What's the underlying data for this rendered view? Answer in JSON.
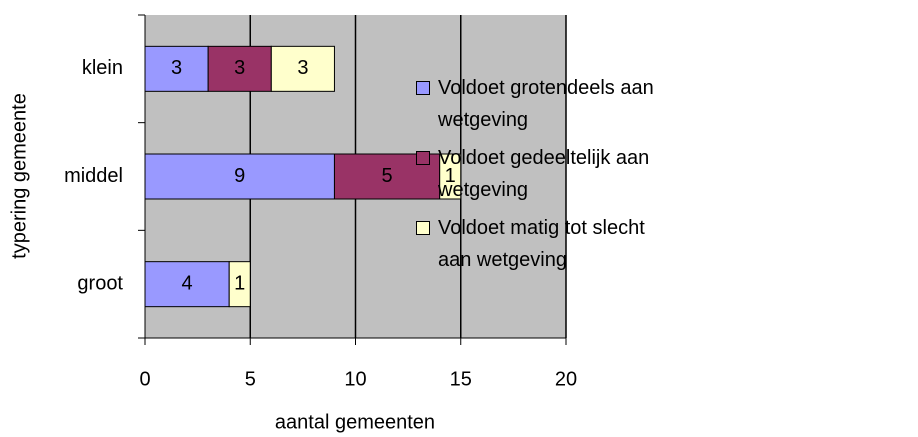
{
  "chart_data": {
    "type": "hbar_stacked",
    "categories": [
      "klein",
      "middel",
      "groot"
    ],
    "series": [
      {
        "name": "Voldoet grotendeels aan wetgeving",
        "color": "#9999ff",
        "values": [
          3,
          9,
          4
        ]
      },
      {
        "name": "Voldoet gedeeltelijk aan wetgeving",
        "color": "#993366",
        "values": [
          3,
          5,
          null
        ]
      },
      {
        "name": "Voldoet matig tot slecht aan wetgeving",
        "color": "#ffffcc",
        "values": [
          3,
          1,
          1
        ]
      }
    ],
    "x_label": "aantal gemeenten",
    "y_label": "typering gemeente",
    "xlim": [
      0,
      20
    ],
    "xticks": [
      0,
      5,
      10,
      15,
      20
    ],
    "grid": true,
    "legend": "right"
  }
}
